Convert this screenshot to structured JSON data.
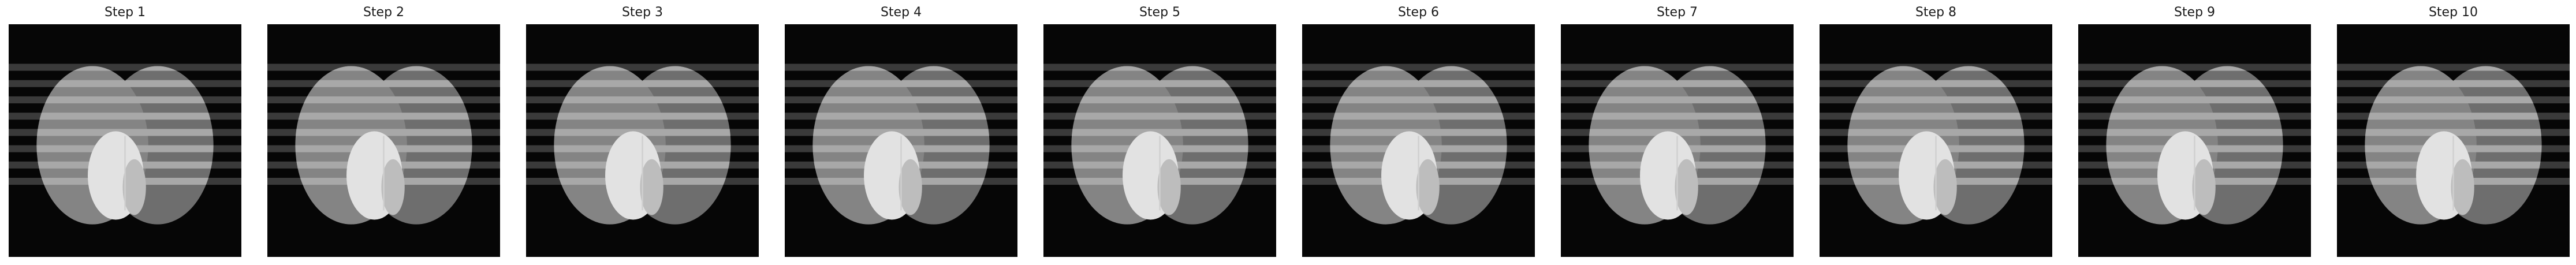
{
  "panels": [
    {
      "title": "Step 1"
    },
    {
      "title": "Step 2"
    },
    {
      "title": "Step 3"
    },
    {
      "title": "Step 4"
    },
    {
      "title": "Step 5"
    },
    {
      "title": "Step 6"
    },
    {
      "title": "Step 7"
    },
    {
      "title": "Step 8"
    },
    {
      "title": "Step 9"
    },
    {
      "title": "Step 10"
    }
  ]
}
